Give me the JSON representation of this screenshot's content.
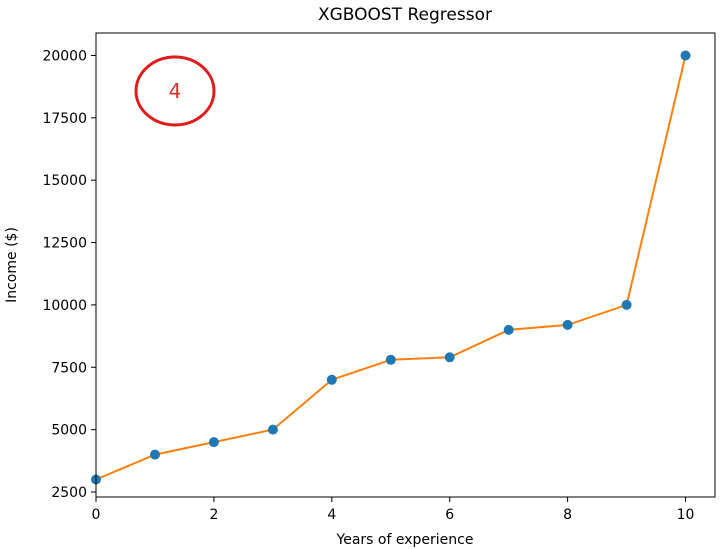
{
  "chart_data": {
    "type": "line",
    "title": "XGBOOST Regressor",
    "xlabel": "Years of experience",
    "ylabel": "Income ($)",
    "xlim": [
      0,
      10.5
    ],
    "ylim": [
      2300,
      20900
    ],
    "x_ticks": [
      0,
      2,
      4,
      6,
      8,
      10
    ],
    "y_ticks": [
      2500,
      5000,
      7500,
      10000,
      12500,
      15000,
      17500,
      20000
    ],
    "grid": false,
    "series": [
      {
        "kind": "scatter",
        "color": "#1f77b4",
        "x": [
          0,
          1,
          2,
          3,
          4,
          5,
          6,
          7,
          8,
          9,
          10
        ],
        "y": [
          3000,
          4000,
          4500,
          5000,
          7000,
          7800,
          7900,
          9000,
          9200,
          10000,
          20000
        ]
      },
      {
        "kind": "line",
        "color": "#ff7f0e",
        "x": [
          0,
          1,
          2,
          3,
          4,
          5,
          6,
          7,
          8,
          9,
          10
        ],
        "y": [
          3000,
          4000,
          4500,
          5000,
          7000,
          7800,
          7900,
          9000,
          9200,
          10000,
          20000
        ]
      }
    ],
    "annotation": {
      "text": "4",
      "color": "#e03030"
    }
  }
}
